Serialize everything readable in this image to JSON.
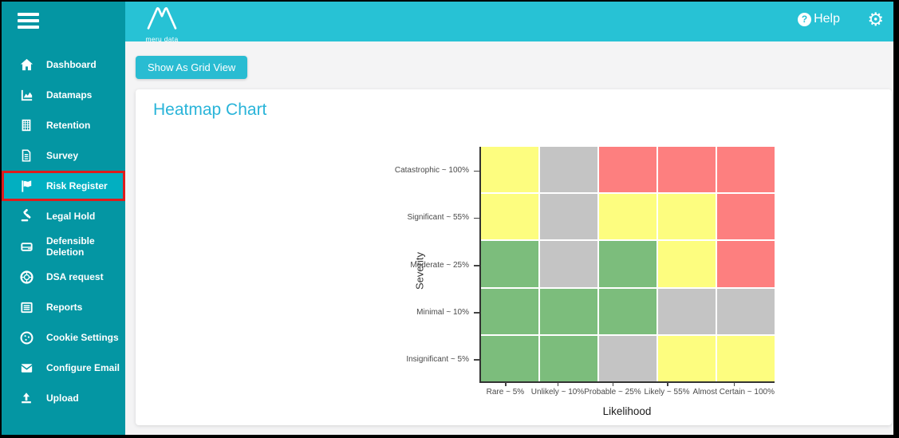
{
  "sidebar": {
    "items": [
      {
        "label": "Dashboard",
        "icon": "home-icon"
      },
      {
        "label": "Datamaps",
        "icon": "area-chart-icon"
      },
      {
        "label": "Retention",
        "icon": "building-icon"
      },
      {
        "label": "Survey",
        "icon": "document-icon"
      },
      {
        "label": "Risk Register",
        "icon": "flag-icon",
        "active": true
      },
      {
        "label": "Legal Hold",
        "icon": "gavel-icon"
      },
      {
        "label": "Defensible Deletion",
        "icon": "drive-icon"
      },
      {
        "label": "DSA request",
        "icon": "life-ring-icon"
      },
      {
        "label": "Reports",
        "icon": "report-list-icon"
      },
      {
        "label": "Cookie Settings",
        "icon": "cookie-icon"
      },
      {
        "label": "Configure Email",
        "icon": "envelope-icon"
      },
      {
        "label": "Upload",
        "icon": "upload-icon"
      }
    ]
  },
  "header": {
    "logo_text": "meru data",
    "help_label": "Help",
    "help_icon": "question-circle-icon",
    "gear_icon": "gear-icon",
    "gear_glyph": "⚙"
  },
  "toolbar": {
    "grid_view_button_label": "Show As Grid View"
  },
  "main": {
    "title": "Heatmap Chart"
  },
  "chart_data": {
    "type": "heatmap",
    "title": "Heatmap Chart",
    "xlabel": "Likelihood",
    "ylabel": "Severity",
    "x_categories": [
      "Rare ~ 5%",
      "Unlikely ~ 10%",
      "Probable ~ 25%",
      "Likely ~ 55%",
      "Almost Certain ~ 100%"
    ],
    "y_categories": [
      "Catastrophic ~ 100%",
      "Significant ~ 55%",
      "Moderate ~ 25%",
      "Minimal ~ 10%",
      "Insignificant ~ 5%"
    ],
    "rows": [
      [
        "yellow",
        "gray",
        "red",
        "red",
        "red"
      ],
      [
        "yellow",
        "gray",
        "yellow",
        "yellow",
        "red"
      ],
      [
        "green",
        "gray",
        "green",
        "yellow",
        "red"
      ],
      [
        "green",
        "green",
        "green",
        "gray",
        "gray"
      ],
      [
        "green",
        "green",
        "gray",
        "yellow",
        "yellow"
      ]
    ],
    "palette": {
      "yellow": "#FDFD7F",
      "gray": "#C4C4C4",
      "red": "#FD7F7F",
      "green": "#7CBD7C"
    },
    "grid_lines": "white",
    "legend": "none"
  },
  "colors": {
    "sidebar_bg": "#0496A3",
    "header_bg": "#27C2D5",
    "active_item_bg": "#02AFC1",
    "active_item_border": "#DE1C1C",
    "accent_button": "#29BCD2",
    "title_text": "#29B4D9"
  }
}
